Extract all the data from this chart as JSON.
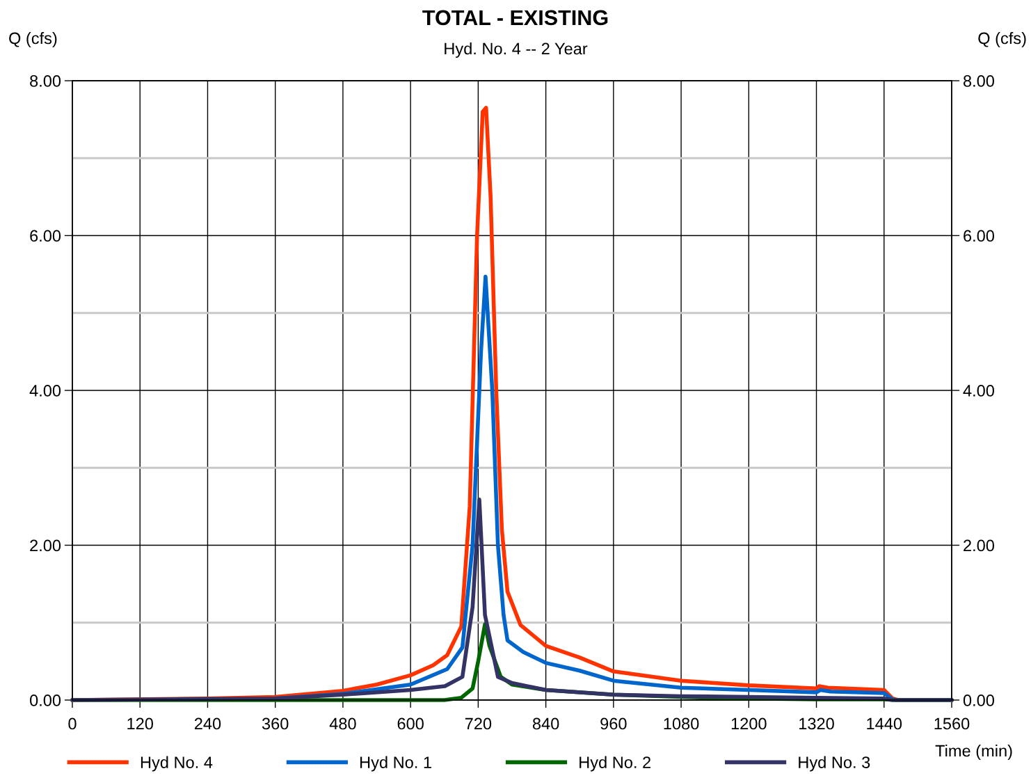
{
  "chart_data": {
    "type": "line",
    "title": "TOTAL - EXISTING",
    "subtitle": "Hyd. No. 4 -- 2 Year",
    "xlabel": "Time (min)",
    "ylabel": "Q (cfs)",
    "y2label": "Q (cfs)",
    "xlim": [
      0,
      1560
    ],
    "xticks": [
      0,
      120,
      240,
      360,
      480,
      600,
      720,
      840,
      960,
      1080,
      1200,
      1320,
      1440,
      1560
    ],
    "ylim": [
      0,
      8
    ],
    "yticks": [
      {
        "value": 0,
        "label": "0.00"
      },
      {
        "value": 1,
        "label": null
      },
      {
        "value": 2,
        "label": "2.00"
      },
      {
        "value": 3,
        "label": null
      },
      {
        "value": 4,
        "label": "4.00"
      },
      {
        "value": 5,
        "label": null
      },
      {
        "value": 6,
        "label": "6.00"
      },
      {
        "value": 7,
        "label": null
      },
      {
        "value": 8,
        "label": "8.00"
      }
    ],
    "y2lim": [
      0,
      8
    ],
    "y2ticks": [
      {
        "value": 0,
        "label": "0.00"
      },
      {
        "value": 2,
        "label": "2.00"
      },
      {
        "value": 4,
        "label": "4.00"
      },
      {
        "value": 6,
        "label": "6.00"
      },
      {
        "value": 8,
        "label": "8.00"
      }
    ],
    "grid": true,
    "legend": "bottom",
    "marker": "none",
    "line_style": "solid",
    "series": [
      {
        "name": "Hyd No. 4",
        "color": "#ff3300",
        "x": [
          0,
          240,
          360,
          480,
          540,
          600,
          640,
          665,
          690,
          705,
          718,
          728,
          734,
          742,
          752,
          762,
          772,
          795,
          840,
          900,
          960,
          1080,
          1200,
          1320,
          1325,
          1340,
          1440,
          1455,
          1465,
          1560
        ],
        "values": [
          0,
          0.02,
          0.04,
          0.12,
          0.2,
          0.32,
          0.45,
          0.58,
          0.95,
          2.5,
          6.0,
          7.6,
          7.65,
          6.5,
          4.0,
          2.2,
          1.4,
          0.97,
          0.7,
          0.55,
          0.37,
          0.25,
          0.19,
          0.15,
          0.18,
          0.16,
          0.13,
          0.02,
          0,
          0
        ]
      },
      {
        "name": "Hyd No. 1",
        "color": "#0066cc",
        "x": [
          360,
          480,
          600,
          665,
          692,
          710,
          725,
          733,
          745,
          755,
          765,
          772,
          800,
          840,
          900,
          960,
          1080,
          1200,
          1320,
          1327,
          1345,
          1440,
          1455,
          1465,
          1560
        ],
        "values": [
          0.02,
          0.08,
          0.2,
          0.4,
          0.68,
          2.0,
          4.5,
          5.47,
          4.0,
          2.0,
          1.1,
          0.77,
          0.62,
          0.48,
          0.38,
          0.25,
          0.16,
          0.13,
          0.1,
          0.13,
          0.11,
          0.09,
          0.01,
          0,
          0
        ]
      },
      {
        "name": "Hyd No. 2",
        "color": "#006600",
        "x": [
          0,
          660,
          690,
          710,
          720,
          732,
          740,
          750,
          760,
          780,
          840,
          960,
          1080,
          1200,
          1320,
          1440,
          1460,
          1560
        ],
        "values": [
          0,
          0,
          0.03,
          0.15,
          0.5,
          0.98,
          0.7,
          0.5,
          0.3,
          0.2,
          0.13,
          0.07,
          0.04,
          0.02,
          0.01,
          0.01,
          0,
          0
        ]
      },
      {
        "name": "Hyd No. 3",
        "color": "#333366",
        "x": [
          0,
          360,
          480,
          600,
          661,
          692,
          710,
          722,
          732,
          755,
          780,
          840,
          960,
          1080,
          1200,
          1320,
          1440,
          1455,
          1560
        ],
        "values": [
          0,
          0.02,
          0.07,
          0.13,
          0.18,
          0.3,
          1.2,
          2.59,
          1.1,
          0.3,
          0.22,
          0.13,
          0.07,
          0.05,
          0.04,
          0.03,
          0.02,
          0,
          0
        ]
      }
    ]
  }
}
